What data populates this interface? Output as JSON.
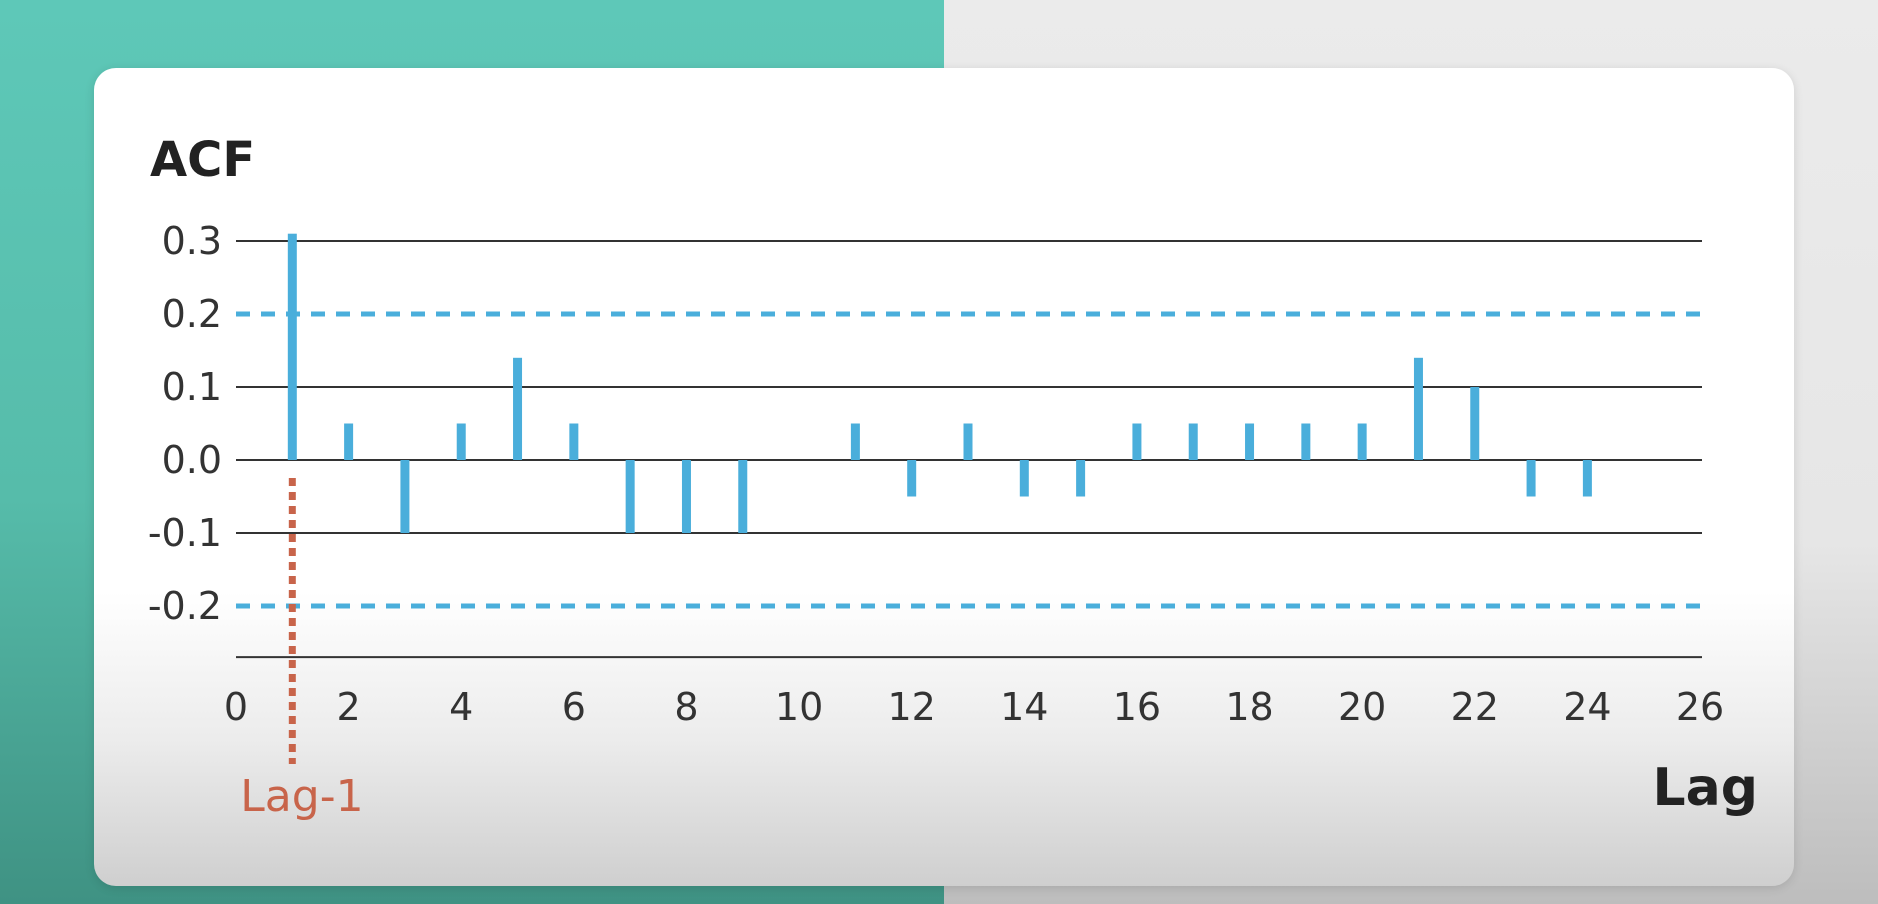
{
  "chart_data": {
    "type": "bar",
    "ylabel": "ACF",
    "xlabel": "Lag",
    "xlim": [
      0,
      26
    ],
    "ylim": [
      -0.27,
      0.3
    ],
    "x_ticks": [
      0,
      2,
      4,
      6,
      8,
      10,
      12,
      14,
      16,
      18,
      20,
      22,
      24,
      26
    ],
    "y_ticks": [
      "0.3",
      "0.2",
      "0.1",
      "0.0",
      "-0.1",
      "-0.2"
    ],
    "gridlines": [
      0.3,
      0.1,
      0.0,
      -0.1,
      -0.27
    ],
    "confidence_bounds": [
      0.2,
      -0.2
    ],
    "series": [
      {
        "lags": [
          1,
          2,
          3,
          4,
          5,
          6,
          7,
          8,
          9,
          11,
          12,
          13,
          14,
          15,
          16,
          17,
          18,
          19,
          20,
          21,
          22,
          23,
          24
        ],
        "values": [
          0.31,
          0.05,
          -0.1,
          0.05,
          0.14,
          0.05,
          -0.1,
          -0.1,
          -0.1,
          0.05,
          -0.05,
          0.05,
          -0.05,
          -0.05,
          0.05,
          0.05,
          0.05,
          0.05,
          0.05,
          0.14,
          0.1,
          -0.05,
          -0.05
        ]
      }
    ],
    "annotations": [
      {
        "text": "Lag-1",
        "x": 1
      }
    ],
    "colors": {
      "bars": "#4aaedb",
      "bounds": "#4aaedb",
      "grid": "#333333",
      "annotation": "#c8644a"
    }
  }
}
